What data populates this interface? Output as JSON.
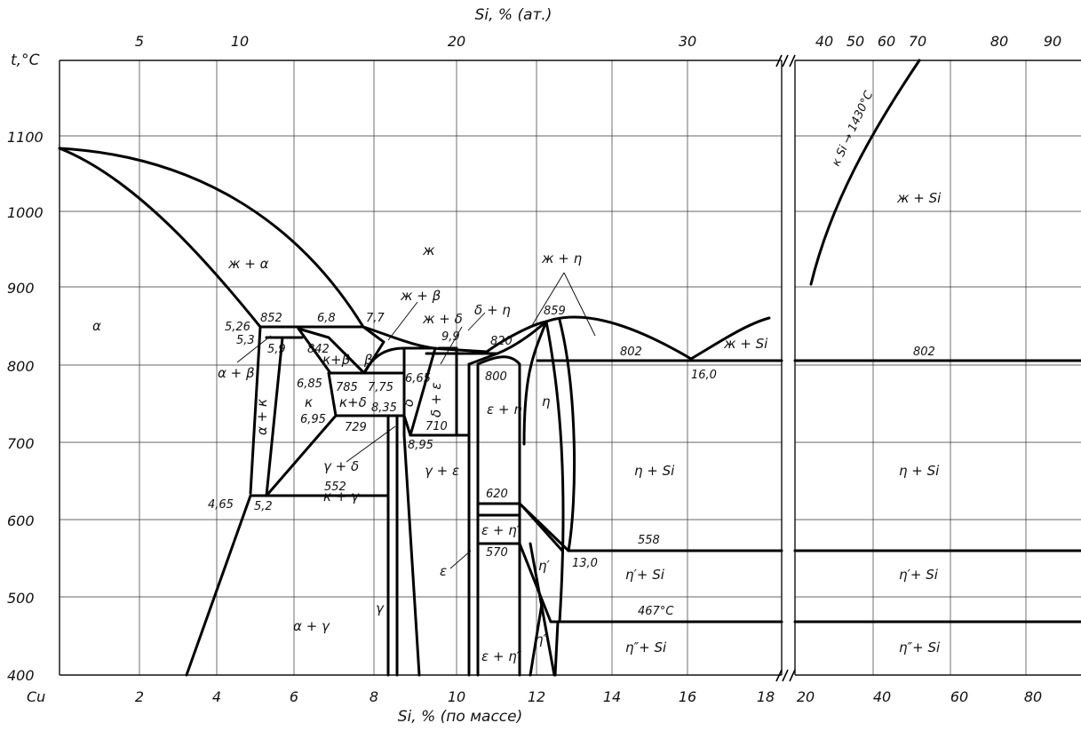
{
  "diagram": {
    "top_axis_title": "Si, % (ат.)",
    "bottom_axis_title": "Si, % (по массе)",
    "y_axis_title": "t,°С",
    "top_ticks_left": [
      "5",
      "10",
      "20",
      "30"
    ],
    "top_ticks_right": [
      "40",
      "50",
      "60",
      "70",
      "80",
      "90"
    ],
    "bottom_ticks_left": [
      "Cu",
      "2",
      "4",
      "6",
      "8",
      "10",
      "12",
      "14",
      "16",
      "18"
    ],
    "bottom_ticks_right": [
      "20",
      "40",
      "60",
      "80"
    ],
    "y_ticks": [
      "1100",
      "1000",
      "900",
      "800",
      "700",
      "600",
      "500",
      "400"
    ],
    "point_labels": {
      "p852": "852",
      "p526": "5,26",
      "p53": "5,3",
      "p59": "5,9",
      "p68": "6,8",
      "p842": "842",
      "p77": "7,7",
      "p685": "6,85",
      "p785": "785",
      "p775": "7,75",
      "p665": "6,65",
      "p99": "9,9",
      "p820": "820",
      "p859": "859",
      "p802a": "802",
      "p160": "16,0",
      "p800": "800",
      "p695": "6,95",
      "p729": "729",
      "p835": "8,35",
      "p710": "710",
      "p895": "8,95",
      "p620": "620",
      "p570": "570",
      "p558": "558",
      "p130": "13,0",
      "p465": "4,65",
      "p52": "5,2",
      "p552": "552",
      "p467": "467°С",
      "p802b": "802",
      "p1430": "к Si → 1430°С"
    },
    "phase_labels": {
      "alpha": "α",
      "liquid": "ж",
      "l_alpha": "ж + α",
      "l_beta": "ж + β",
      "l_delta": "ж + δ",
      "delta_eta": "δ + η",
      "l_eta": "ж + η",
      "l_si_low": "ж + Si",
      "l_si_high": "ж + Si",
      "kappa_beta": "к+β",
      "beta": "β",
      "kappa": "к",
      "kappa_delta": "к+δ",
      "delta": "δ",
      "delta_eps": "δ + ε",
      "alpha_beta": "α + β",
      "alpha_kappa": "α + к",
      "eps_eta": "ε + η",
      "eta": "η",
      "gamma_delta": "γ + δ",
      "kappa_gamma": "к + γ",
      "gamma_eps": "γ + ε",
      "eta_si": "η + Si",
      "eta_si_r": "η + Si",
      "eps_eta1": "ε + η′",
      "eta1": "η′",
      "eps": "ε",
      "gamma": "γ",
      "alpha_gamma": "α + γ",
      "eta1_si": "η′+ Si",
      "eta1_si_r": "η′+ Si",
      "eps_eta2": "ε + η″",
      "eta2": "η″",
      "eta2_si": "η″+ Si",
      "eta2_si_r": "η″+ Si"
    }
  }
}
